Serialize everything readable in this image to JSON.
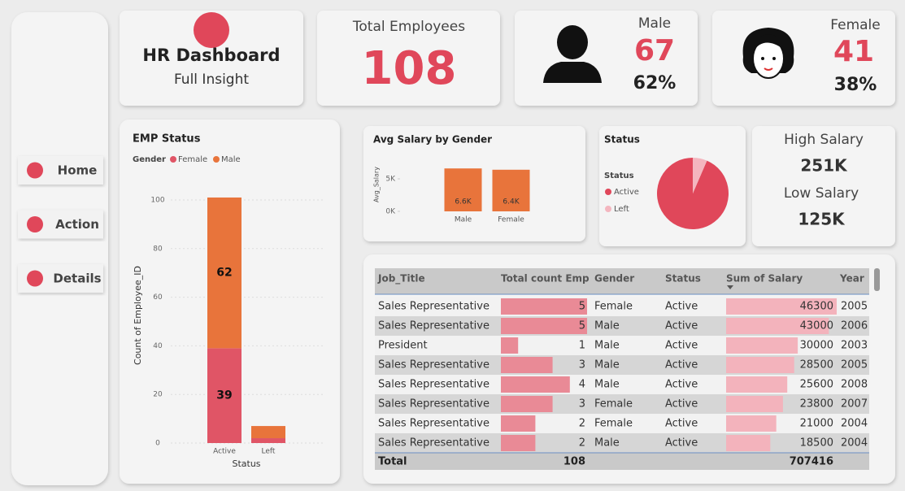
{
  "nav": [
    "Home",
    "Action",
    "Details"
  ],
  "header": {
    "title": "HR Dashboard",
    "subtitle": "Full Insight"
  },
  "total": {
    "label": "Total Employees",
    "value": "108"
  },
  "male": {
    "label": "Male",
    "count": "67",
    "percent": "62%"
  },
  "female": {
    "label": "Female",
    "count": "41",
    "percent": "38%"
  },
  "salary_range": {
    "high_label": "High Salary",
    "high": "251K",
    "low_label": "Low Salary",
    "low": "125K"
  },
  "emp_status": {
    "type": "bar",
    "stacked": true,
    "title": "EMP Status",
    "legend_title": "Gender",
    "categories": [
      "Active",
      "Left"
    ],
    "series": [
      {
        "name": "Female",
        "color": "#e05566",
        "values": [
          39,
          2
        ]
      },
      {
        "name": "Male",
        "color": "#e8743b",
        "values": [
          62,
          5
        ]
      }
    ],
    "ylim": [
      0,
      105
    ],
    "yticks": [
      0,
      20,
      40,
      60,
      80,
      100
    ],
    "y_label": "Count of Employee_ID",
    "x_label": "Status",
    "grid": true
  },
  "avg_salary": {
    "type": "bar",
    "title": "Avg Salary by Gender",
    "categories": [
      "Male",
      "Female"
    ],
    "values": [
      6600,
      6400
    ],
    "value_labels": [
      "6.6K",
      "6.4K"
    ],
    "color": "#e8743b",
    "ylim": [
      0,
      7000
    ],
    "yticks": [
      {
        "value": 0,
        "label": "0K"
      },
      {
        "value": 5000,
        "label": "5K"
      }
    ],
    "y_label": "Avg_Salary"
  },
  "status": {
    "type": "pie",
    "title": "Status",
    "legend_title": "Status",
    "categories": [
      "Active",
      "Left"
    ],
    "values": [
      101,
      7
    ],
    "colors": [
      "#e0475a",
      "#f4b6bf"
    ]
  },
  "table": {
    "columns": [
      "Job_Title",
      "Total count Emp",
      "Gender",
      "Status",
      "Sum of Salary",
      "Year"
    ],
    "rows": [
      [
        "Sales Representative",
        5,
        "Female",
        "Active",
        46300,
        2005
      ],
      [
        "Sales Representative",
        5,
        "Male",
        "Active",
        43000,
        2006
      ],
      [
        "President",
        1,
        "Male",
        "Active",
        30000,
        2003
      ],
      [
        "Sales Representative",
        3,
        "Male",
        "Active",
        28500,
        2005
      ],
      [
        "Sales Representative",
        4,
        "Male",
        "Active",
        25600,
        2008
      ],
      [
        "Sales Representative",
        3,
        "Female",
        "Active",
        23800,
        2007
      ],
      [
        "Sales Representative",
        2,
        "Female",
        "Active",
        21000,
        2004
      ],
      [
        "Sales Representative",
        2,
        "Male",
        "Active",
        18500,
        2004
      ]
    ],
    "total": [
      "Total",
      108,
      707416
    ]
  }
}
